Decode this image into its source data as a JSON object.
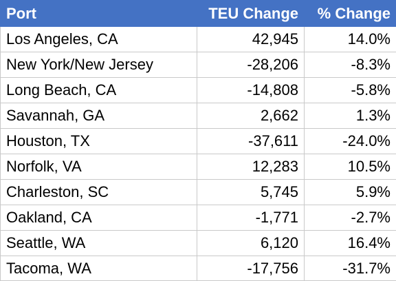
{
  "colors": {
    "header_bg": "#4472c4",
    "header_text": "#ffffff",
    "grid": "#c9c9c9"
  },
  "chart_data": {
    "type": "table",
    "columns": [
      "Port",
      "TEU Change",
      "% Change"
    ],
    "rows": [
      {
        "port": "Los Angeles, CA",
        "teu_change": "42,945",
        "pct_change": "14.0%"
      },
      {
        "port": "New York/New Jersey",
        "teu_change": "-28,206",
        "pct_change": "-8.3%"
      },
      {
        "port": "Long Beach, CA",
        "teu_change": "-14,808",
        "pct_change": "-5.8%"
      },
      {
        "port": "Savannah, GA",
        "teu_change": "2,662",
        "pct_change": "1.3%"
      },
      {
        "port": "Houston, TX",
        "teu_change": "-37,611",
        "pct_change": "-24.0%"
      },
      {
        "port": "Norfolk, VA",
        "teu_change": "12,283",
        "pct_change": "10.5%"
      },
      {
        "port": "Charleston, SC",
        "teu_change": "5,745",
        "pct_change": "5.9%"
      },
      {
        "port": "Oakland, CA",
        "teu_change": "-1,771",
        "pct_change": "-2.7%"
      },
      {
        "port": "Seattle, WA",
        "teu_change": "6,120",
        "pct_change": "16.4%"
      },
      {
        "port": "Tacoma, WA",
        "teu_change": "-17,756",
        "pct_change": "-31.7%"
      }
    ]
  }
}
